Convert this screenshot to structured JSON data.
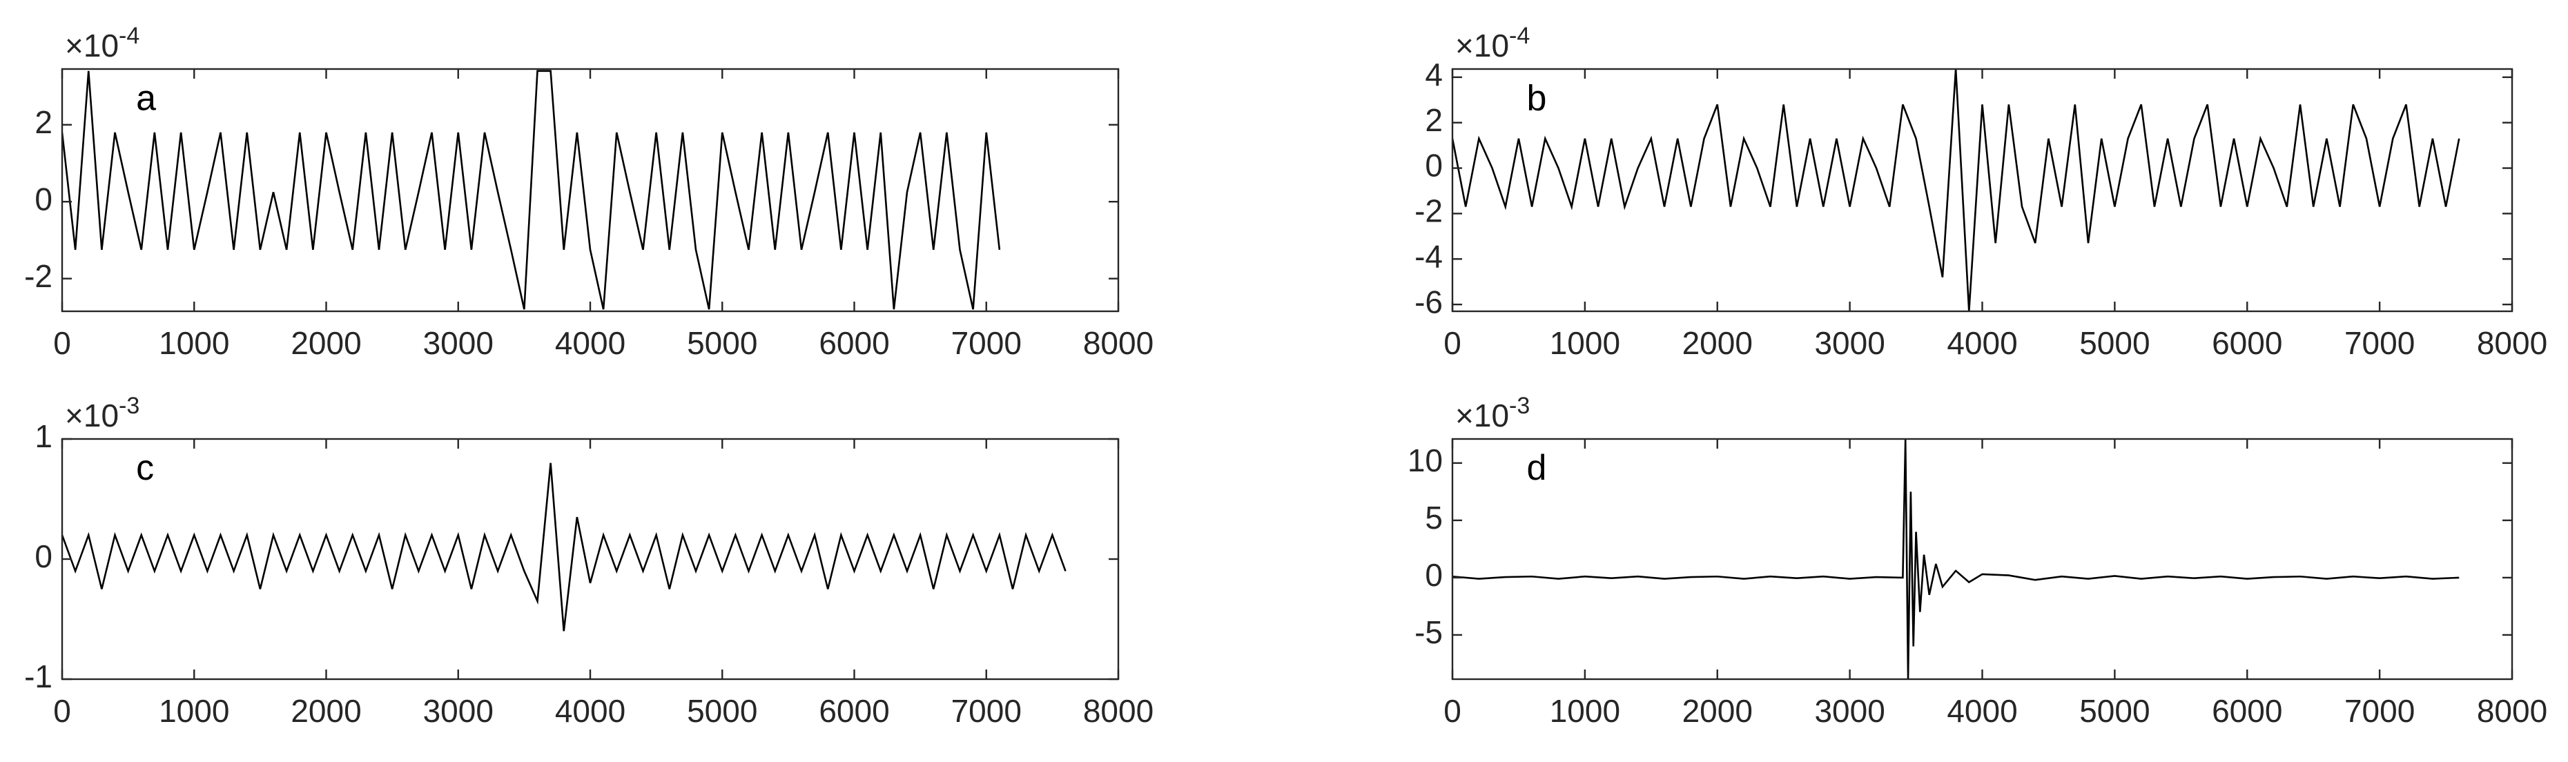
{
  "chart_data": [
    {
      "type": "line",
      "label": "a",
      "multiplier": "×10",
      "exponent": "-4",
      "color": "#000000",
      "xlim": [
        0,
        8000
      ],
      "xticks": [
        0,
        1000,
        2000,
        3000,
        4000,
        5000,
        6000,
        7000,
        8000
      ],
      "ylim": [
        -2.85,
        3.45
      ],
      "yticks": [
        -2,
        0,
        2
      ],
      "x": [
        0,
        100,
        200,
        300,
        400,
        500,
        600,
        700,
        800,
        900,
        1000,
        1100,
        1200,
        1300,
        1400,
        1500,
        1600,
        1700,
        1800,
        1900,
        2000,
        2100,
        2200,
        2300,
        2400,
        2500,
        2600,
        2700,
        2800,
        2900,
        3000,
        3100,
        3200,
        3300,
        3400,
        3500,
        3600,
        3700,
        3800,
        3900,
        4000,
        4100,
        4200,
        4300,
        4400,
        4500,
        4600,
        4700,
        4800,
        4900,
        5000,
        5100,
        5200,
        5300,
        5400,
        5500,
        5600,
        5700,
        5800,
        5900,
        6000,
        6100,
        6200,
        6300,
        6400,
        6500,
        6600,
        6700,
        6800,
        6900,
        7000,
        7100
      ],
      "values": [
        1.8,
        -1.25,
        3.4,
        -1.25,
        1.8,
        0.25,
        -1.25,
        1.8,
        -1.25,
        1.8,
        -1.25,
        0.25,
        1.8,
        -1.25,
        1.8,
        -1.25,
        0.25,
        -1.25,
        1.8,
        -1.25,
        1.8,
        0.25,
        -1.25,
        1.8,
        -1.25,
        1.8,
        -1.25,
        0.25,
        1.8,
        -1.25,
        1.8,
        -1.25,
        1.8,
        0.25,
        -1.25,
        -2.8,
        3.4,
        3.4,
        -1.25,
        1.8,
        -1.25,
        -2.8,
        1.8,
        0.25,
        -1.25,
        1.8,
        -1.25,
        1.8,
        -1.25,
        -2.8,
        1.8,
        0.25,
        -1.25,
        1.8,
        -1.25,
        1.8,
        -1.25,
        0.25,
        1.8,
        -1.25,
        1.8,
        -1.25,
        1.8,
        -2.8,
        0.25,
        1.8,
        -1.25,
        1.8,
        -1.25,
        -2.8,
        1.8,
        -1.25
      ]
    },
    {
      "type": "line",
      "label": "b",
      "multiplier": "×10",
      "exponent": "-4",
      "color": "#000000",
      "xlim": [
        0,
        8000
      ],
      "xticks": [
        0,
        1000,
        2000,
        3000,
        4000,
        5000,
        6000,
        7000,
        8000
      ],
      "ylim": [
        -6.3,
        4.36
      ],
      "yticks": [
        -6,
        -4,
        -2,
        0,
        2,
        4
      ],
      "x": [
        0,
        100,
        200,
        300,
        400,
        500,
        600,
        700,
        800,
        900,
        1000,
        1100,
        1200,
        1300,
        1400,
        1500,
        1600,
        1700,
        1800,
        1900,
        2000,
        2100,
        2200,
        2300,
        2400,
        2500,
        2600,
        2700,
        2800,
        2900,
        3000,
        3100,
        3200,
        3300,
        3400,
        3500,
        3600,
        3700,
        3800,
        3900,
        4000,
        4100,
        4200,
        4300,
        4400,
        4500,
        4600,
        4700,
        4800,
        4900,
        5000,
        5100,
        5200,
        5300,
        5400,
        5500,
        5600,
        5700,
        5800,
        5900,
        6000,
        6100,
        6200,
        6300,
        6400,
        6500,
        6600,
        6700,
        6800,
        6900,
        7000,
        7100,
        7200,
        7300,
        7400,
        7500,
        7600
      ],
      "values": [
        1.3,
        -1.7,
        1.3,
        0,
        -1.7,
        1.3,
        -1.7,
        1.3,
        0,
        -1.7,
        1.3,
        -1.7,
        1.3,
        -1.7,
        0,
        1.3,
        -1.7,
        1.3,
        -1.7,
        1.3,
        2.8,
        -1.7,
        1.3,
        0,
        -1.7,
        2.8,
        -1.7,
        1.3,
        -1.7,
        1.3,
        -1.7,
        1.3,
        0,
        -1.7,
        2.8,
        1.3,
        -1.7,
        -4.8,
        4.36,
        -6.3,
        2.8,
        -3.3,
        2.8,
        -1.7,
        -3.3,
        1.3,
        -1.7,
        2.8,
        -3.3,
        1.3,
        -1.7,
        1.3,
        2.8,
        -1.7,
        1.3,
        -1.7,
        1.3,
        2.8,
        -1.7,
        1.3,
        -1.7,
        1.3,
        0,
        -1.7,
        2.8,
        -1.7,
        1.3,
        -1.7,
        2.8,
        1.3,
        -1.7,
        1.3,
        2.8,
        -1.7,
        1.3,
        -1.7,
        1.3
      ]
    },
    {
      "type": "line",
      "label": "c",
      "multiplier": "×10",
      "exponent": "-3",
      "color": "#000000",
      "xlim": [
        0,
        8000
      ],
      "xticks": [
        0,
        1000,
        2000,
        3000,
        4000,
        5000,
        6000,
        7000,
        8000
      ],
      "ylim": [
        -1,
        1
      ],
      "yticks": [
        -1,
        0,
        1
      ],
      "x": [
        0,
        100,
        200,
        300,
        400,
        500,
        600,
        700,
        800,
        900,
        1000,
        1100,
        1200,
        1300,
        1400,
        1500,
        1600,
        1700,
        1800,
        1900,
        2000,
        2100,
        2200,
        2300,
        2400,
        2500,
        2600,
        2700,
        2800,
        2900,
        3000,
        3100,
        3200,
        3300,
        3400,
        3500,
        3600,
        3700,
        3800,
        3900,
        4000,
        4100,
        4200,
        4300,
        4400,
        4500,
        4600,
        4700,
        4800,
        4900,
        5000,
        5100,
        5200,
        5300,
        5400,
        5500,
        5600,
        5700,
        5800,
        5900,
        6000,
        6100,
        6200,
        6300,
        6400,
        6500,
        6600,
        6700,
        6800,
        6900,
        7000,
        7100,
        7200,
        7300,
        7400,
        7500,
        7600
      ],
      "values": [
        0.2,
        -0.1,
        0.2,
        -0.25,
        0.2,
        -0.1,
        0.2,
        -0.1,
        0.2,
        -0.1,
        0.2,
        -0.1,
        0.2,
        -0.1,
        0.2,
        -0.25,
        0.2,
        -0.1,
        0.2,
        -0.1,
        0.2,
        -0.1,
        0.2,
        -0.1,
        0.2,
        -0.25,
        0.2,
        -0.1,
        0.2,
        -0.1,
        0.2,
        -0.25,
        0.2,
        -0.1,
        0.2,
        -0.1,
        -0.35,
        0.8,
        -0.6,
        0.35,
        -0.2,
        0.2,
        -0.1,
        0.2,
        -0.1,
        0.2,
        -0.25,
        0.2,
        -0.1,
        0.2,
        -0.1,
        0.2,
        -0.1,
        0.2,
        -0.1,
        0.2,
        -0.1,
        0.2,
        -0.25,
        0.2,
        -0.1,
        0.2,
        -0.1,
        0.2,
        -0.1,
        0.2,
        -0.25,
        0.2,
        -0.1,
        0.2,
        -0.1,
        0.2,
        -0.25,
        0.2,
        -0.1,
        0.2,
        -0.1
      ]
    },
    {
      "type": "line",
      "label": "d",
      "multiplier": "×10",
      "exponent": "-3",
      "color": "#000000",
      "xlim": [
        0,
        8000
      ],
      "xticks": [
        0,
        1000,
        2000,
        3000,
        4000,
        5000,
        6000,
        7000,
        8000
      ],
      "ylim": [
        -8.86,
        12.1
      ],
      "yticks": [
        -5,
        0,
        5,
        10
      ],
      "x": [
        0,
        200,
        400,
        600,
        800,
        1000,
        1200,
        1400,
        1600,
        1800,
        2000,
        2200,
        2400,
        2600,
        2800,
        3000,
        3200,
        3400,
        3420,
        3440,
        3460,
        3480,
        3500,
        3530,
        3560,
        3600,
        3650,
        3700,
        3800,
        3900,
        4000,
        4200,
        4400,
        4600,
        4800,
        5000,
        5200,
        5400,
        5600,
        5800,
        6000,
        6200,
        6400,
        6600,
        6800,
        7000,
        7200,
        7400,
        7600
      ],
      "values": [
        0.1,
        -0.1,
        0.05,
        0.1,
        -0.1,
        0.1,
        -0.05,
        0.1,
        -0.1,
        0.05,
        0.1,
        -0.1,
        0.1,
        -0.05,
        0.1,
        -0.1,
        0.05,
        0,
        12.1,
        -8.8,
        7.5,
        -6,
        4,
        -3,
        2,
        -1.5,
        1.2,
        -0.8,
        0.6,
        -0.4,
        0.3,
        0.2,
        -0.2,
        0.1,
        -0.1,
        0.15,
        -0.1,
        0.1,
        -0.05,
        0.1,
        -0.1,
        0.05,
        0.1,
        -0.1,
        0.1,
        -0.05,
        0.1,
        -0.1,
        0
      ]
    }
  ]
}
